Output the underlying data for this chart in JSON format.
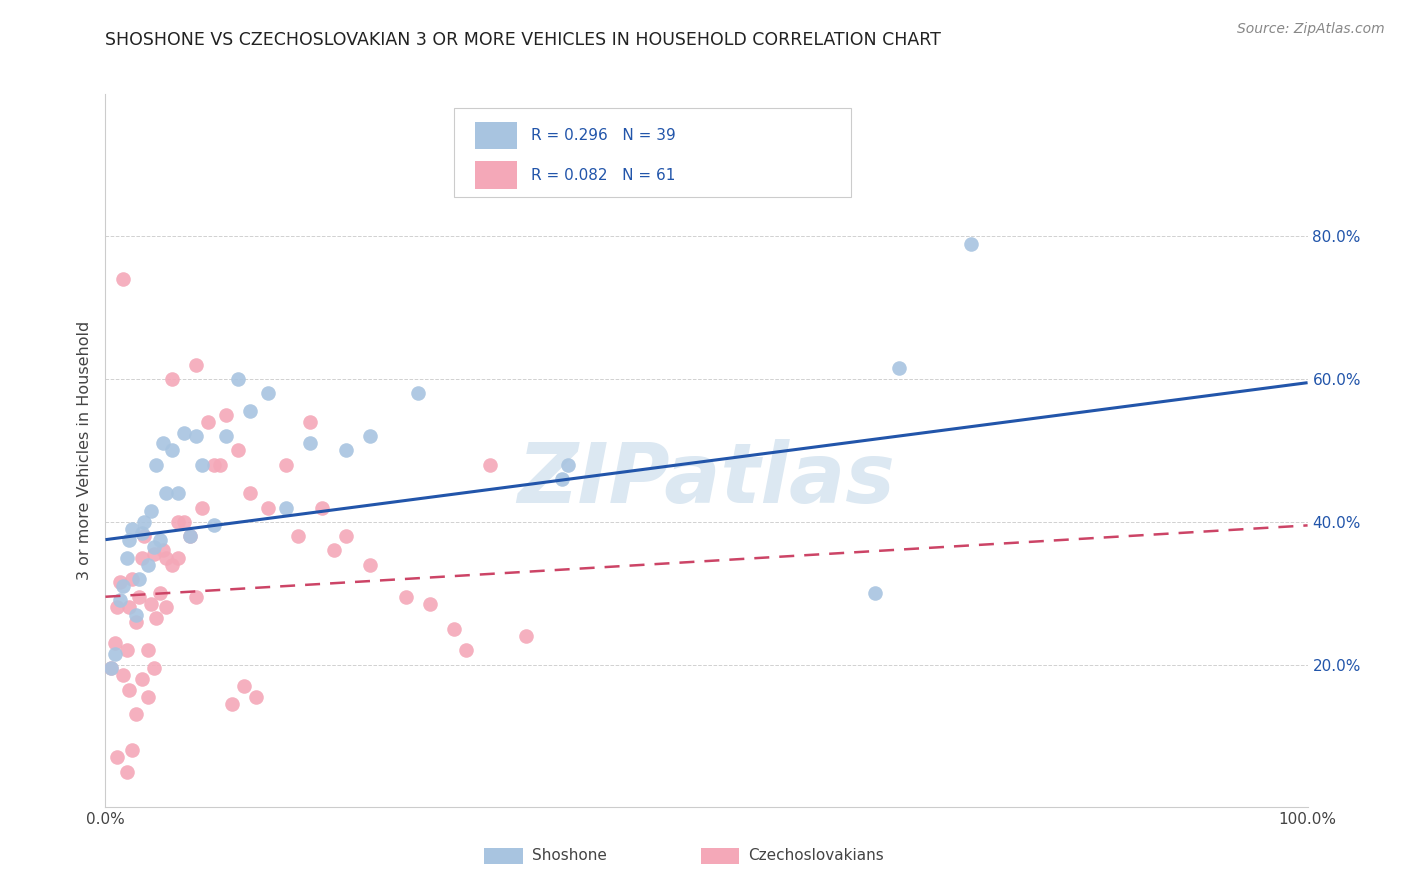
{
  "title": "SHOSHONE VS CZECHOSLOVAKIAN 3 OR MORE VEHICLES IN HOUSEHOLD CORRELATION CHART",
  "source": "Source: ZipAtlas.com",
  "ylabel": "3 or more Vehicles in Household",
  "shoshone_R": "R = 0.296",
  "shoshone_N": "N = 39",
  "czech_R": "R = 0.082",
  "czech_N": "N = 61",
  "xlim": [
    0.0,
    1.0
  ],
  "ylim": [
    0.0,
    1.0
  ],
  "xtick_positions": [
    0.0,
    1.0
  ],
  "xtick_labels": [
    "0.0%",
    "100.0%"
  ],
  "ytick_positions": [
    0.2,
    0.4,
    0.6,
    0.8
  ],
  "ytick_right_labels": [
    "20.0%",
    "40.0%",
    "60.0%",
    "80.0%"
  ],
  "shoshone_color": "#a8c4e0",
  "czech_color": "#f4a8b8",
  "shoshone_line_color": "#2255aa",
  "czech_line_color": "#cc4466",
  "watermark_color": "#dce8f2",
  "shoshone_x": [
    0.005,
    0.008,
    0.012,
    0.015,
    0.018,
    0.02,
    0.022,
    0.025,
    0.028,
    0.03,
    0.032,
    0.035,
    0.038,
    0.04,
    0.042,
    0.045,
    0.048,
    0.05,
    0.055,
    0.06,
    0.065,
    0.07,
    0.075,
    0.08,
    0.09,
    0.1,
    0.11,
    0.12,
    0.135,
    0.15,
    0.17,
    0.2,
    0.22,
    0.26,
    0.385,
    0.64,
    0.66,
    0.72,
    0.38
  ],
  "shoshone_y": [
    0.195,
    0.215,
    0.29,
    0.31,
    0.35,
    0.375,
    0.39,
    0.27,
    0.32,
    0.385,
    0.4,
    0.34,
    0.415,
    0.365,
    0.48,
    0.375,
    0.51,
    0.44,
    0.5,
    0.44,
    0.525,
    0.38,
    0.52,
    0.48,
    0.395,
    0.52,
    0.6,
    0.555,
    0.58,
    0.42,
    0.51,
    0.5,
    0.52,
    0.58,
    0.48,
    0.3,
    0.615,
    0.79,
    0.46
  ],
  "czech_x": [
    0.005,
    0.008,
    0.01,
    0.012,
    0.015,
    0.018,
    0.02,
    0.022,
    0.025,
    0.028,
    0.03,
    0.032,
    0.035,
    0.038,
    0.04,
    0.042,
    0.045,
    0.048,
    0.05,
    0.055,
    0.06,
    0.065,
    0.07,
    0.075,
    0.08,
    0.09,
    0.1,
    0.11,
    0.12,
    0.135,
    0.15,
    0.16,
    0.17,
    0.18,
    0.19,
    0.2,
    0.22,
    0.25,
    0.27,
    0.29,
    0.3,
    0.32,
    0.35,
    0.055,
    0.075,
    0.085,
    0.095,
    0.105,
    0.115,
    0.125,
    0.015,
    0.02,
    0.025,
    0.03,
    0.035,
    0.04,
    0.01,
    0.018,
    0.022,
    0.05,
    0.06
  ],
  "czech_y": [
    0.195,
    0.23,
    0.28,
    0.315,
    0.185,
    0.22,
    0.28,
    0.32,
    0.26,
    0.295,
    0.35,
    0.38,
    0.22,
    0.285,
    0.355,
    0.265,
    0.3,
    0.36,
    0.28,
    0.34,
    0.35,
    0.4,
    0.38,
    0.295,
    0.42,
    0.48,
    0.55,
    0.5,
    0.44,
    0.42,
    0.48,
    0.38,
    0.54,
    0.42,
    0.36,
    0.38,
    0.34,
    0.295,
    0.285,
    0.25,
    0.22,
    0.48,
    0.24,
    0.6,
    0.62,
    0.54,
    0.48,
    0.145,
    0.17,
    0.155,
    0.74,
    0.165,
    0.13,
    0.18,
    0.155,
    0.195,
    0.07,
    0.05,
    0.08,
    0.35,
    0.4
  ],
  "shoshone_line_y0": 0.375,
  "shoshone_line_y1": 0.595,
  "czech_line_y0": 0.295,
  "czech_line_y1": 0.395
}
